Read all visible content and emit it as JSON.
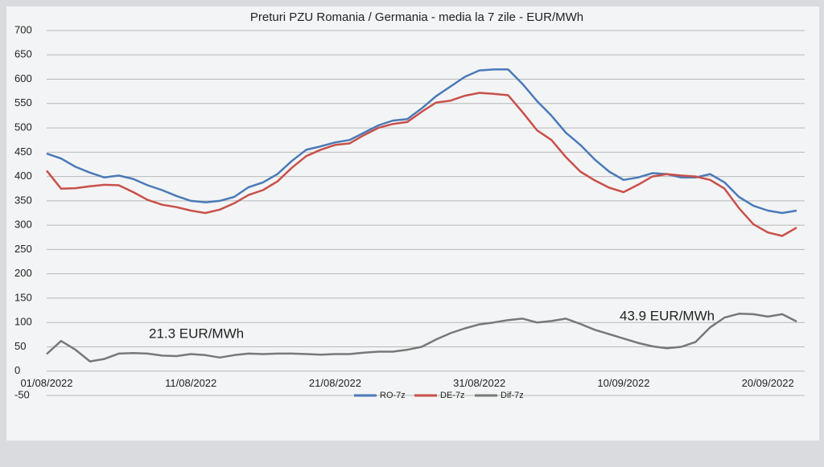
{
  "chart_data": {
    "type": "line",
    "title": "Preturi PZU Romania / Germania - media la 7 zile - EUR/MWh",
    "categories": [
      "01/08/2022",
      null,
      null,
      null,
      null,
      null,
      null,
      null,
      null,
      null,
      "11/08/2022",
      null,
      null,
      null,
      null,
      null,
      null,
      null,
      null,
      null,
      "21/08/2022",
      null,
      null,
      null,
      null,
      null,
      null,
      null,
      null,
      null,
      "31/08/2022",
      null,
      null,
      null,
      null,
      null,
      null,
      null,
      null,
      null,
      "10/09/2022",
      null,
      null,
      null,
      null,
      null,
      null,
      null,
      null,
      null,
      "20/09/2022",
      null,
      null
    ],
    "series": [
      {
        "name": "RO-7z",
        "color": "#4a7ab8",
        "values": [
          447,
          437,
          420,
          408,
          398,
          402,
          395,
          382,
          372,
          360,
          350,
          347,
          350,
          358,
          378,
          388,
          405,
          432,
          455,
          462,
          470,
          475,
          490,
          505,
          515,
          518,
          540,
          565,
          585,
          605,
          618,
          620,
          620,
          590,
          555,
          525,
          490,
          465,
          435,
          410,
          393,
          398,
          407,
          405,
          398,
          398,
          405,
          388,
          358,
          340,
          330,
          325,
          330
        ]
      },
      {
        "name": "DE-7z",
        "color": "#c9504a",
        "values": [
          412,
          375,
          376,
          380,
          383,
          382,
          368,
          352,
          342,
          337,
          330,
          325,
          332,
          345,
          362,
          372,
          390,
          418,
          442,
          455,
          465,
          468,
          485,
          500,
          508,
          512,
          533,
          552,
          556,
          566,
          572,
          570,
          567,
          532,
          495,
          475,
          440,
          410,
          392,
          377,
          368,
          383,
          400,
          405,
          402,
          400,
          393,
          375,
          335,
          302,
          285,
          278,
          295
        ]
      },
      {
        "name": "Dif-7z",
        "color": "#787878",
        "values": [
          35,
          62,
          44,
          20,
          25,
          36,
          37,
          36,
          32,
          31,
          35,
          33,
          28,
          33,
          36,
          35,
          36,
          36,
          35,
          34,
          35,
          35,
          38,
          40,
          40,
          44,
          50,
          65,
          78,
          88,
          96,
          100,
          105,
          108,
          100,
          103,
          108,
          97,
          85,
          76,
          67,
          58,
          51,
          47,
          50,
          60,
          90,
          110,
          118,
          117,
          112,
          117,
          102
        ]
      }
    ],
    "ylim": [
      -50,
      700
    ],
    "yticks": [
      -50,
      0,
      50,
      100,
      150,
      200,
      250,
      300,
      350,
      400,
      450,
      500,
      550,
      600,
      650,
      700
    ],
    "grid": true,
    "annotations": [
      "21.3 EUR/MWh",
      "43.9 EUR/MWh"
    ]
  }
}
